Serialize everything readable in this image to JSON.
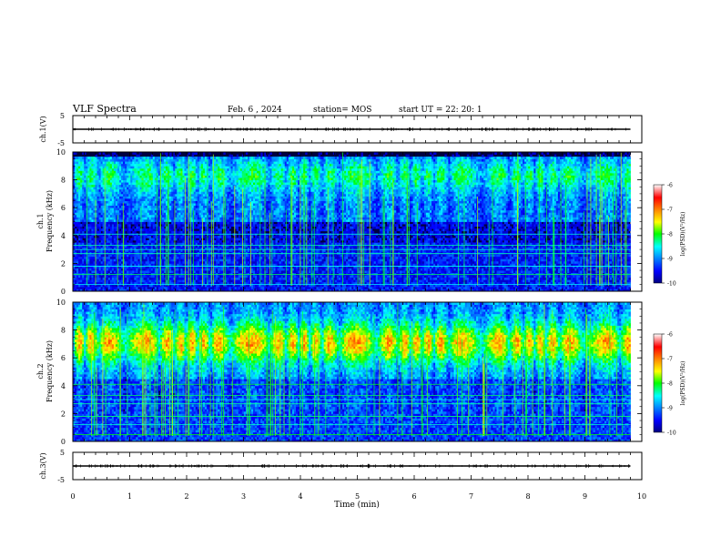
{
  "header": {
    "title": "VLF Spectra",
    "date": "Feb. 6 , 2024",
    "station": "station= MOS",
    "start": "start  UT =   22: 20: 1"
  },
  "chart_data": [
    {
      "type": "line",
      "ylabel": "ch.1(V)",
      "ylim": [
        -5,
        5
      ],
      "y_ticks": [
        "5",
        "-5"
      ],
      "series": [
        {
          "values": [
            0
          ]
        }
      ]
    },
    {
      "type": "heatmap",
      "ylabel_line1": "ch.1",
      "ylabel_line2": "Frequency (kHz)",
      "ylim": [
        0,
        10
      ],
      "y_ticks": [
        "0",
        "2",
        "4",
        "6",
        "8",
        "10"
      ],
      "colorbar": {
        "label": "log(PSD)(V²/Hz)",
        "range": [
          -10,
          -6
        ],
        "ticks": [
          "-6",
          "-7",
          "-8",
          "-9",
          "-10"
        ]
      }
    },
    {
      "type": "heatmap",
      "ylabel_line1": "ch.2",
      "ylabel_line2": "Frequency (kHz)",
      "ylim": [
        0,
        10
      ],
      "y_ticks": [
        "0",
        "2",
        "4",
        "6",
        "8",
        "10"
      ],
      "colorbar": {
        "label": "log(PSD)(V²/Hz)",
        "range": [
          -10,
          -6
        ],
        "ticks": [
          "-6",
          "-7",
          "-8",
          "-9",
          "-10"
        ]
      }
    },
    {
      "type": "line",
      "ylabel": "ch.3(V)",
      "ylim": [
        -5,
        5
      ],
      "y_ticks": [
        "5",
        "-5"
      ],
      "series": [
        {
          "values": [
            0
          ]
        }
      ]
    }
  ],
  "x_axis": {
    "label": "Time  (min)",
    "xlim": [
      0,
      10
    ],
    "ticks": [
      "0",
      "1",
      "2",
      "3",
      "4",
      "5",
      "6",
      "7",
      "8",
      "9",
      "10"
    ],
    "data_end": 9.8
  }
}
